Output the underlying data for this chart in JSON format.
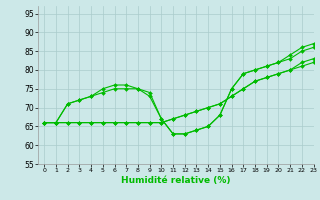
{
  "xlabel": "Humidité relative (%)",
  "xlim": [
    -0.5,
    23
  ],
  "ylim": [
    55,
    97
  ],
  "yticks": [
    55,
    60,
    65,
    70,
    75,
    80,
    85,
    90,
    95
  ],
  "xticks": [
    0,
    1,
    2,
    3,
    4,
    5,
    6,
    7,
    8,
    9,
    10,
    11,
    12,
    13,
    14,
    15,
    16,
    17,
    18,
    19,
    20,
    21,
    22,
    23
  ],
  "background_color": "#cce8e8",
  "grid_color": "#aacccc",
  "line_color": "#00bb00",
  "lines": [
    [
      66,
      66,
      71,
      72,
      73,
      75,
      76,
      76,
      75,
      73,
      67,
      63,
      63,
      64,
      65,
      68,
      75,
      79,
      80,
      81,
      82,
      84,
      86,
      87
    ],
    [
      66,
      66,
      71,
      72,
      73,
      74,
      75,
      75,
      75,
      74,
      67,
      63,
      63,
      64,
      65,
      68,
      75,
      79,
      80,
      81,
      82,
      83,
      85,
      86
    ],
    [
      66,
      66,
      66,
      66,
      66,
      66,
      66,
      66,
      66,
      66,
      66,
      67,
      68,
      69,
      70,
      71,
      73,
      75,
      77,
      78,
      79,
      80,
      82,
      83
    ],
    [
      66,
      66,
      66,
      66,
      66,
      66,
      66,
      66,
      66,
      66,
      66,
      67,
      68,
      69,
      70,
      71,
      73,
      75,
      77,
      78,
      79,
      80,
      81,
      82
    ]
  ]
}
